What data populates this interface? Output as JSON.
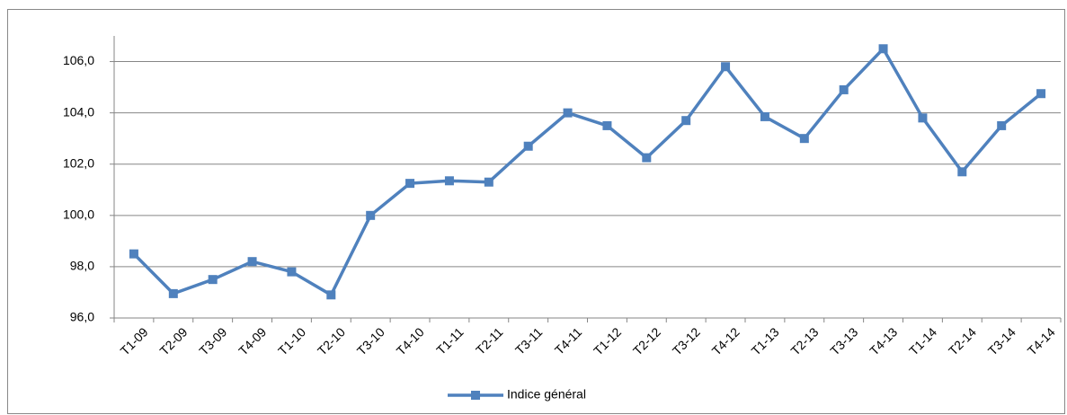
{
  "chart_data": {
    "type": "line",
    "categories": [
      "T1-09",
      "T2-09",
      "T3-09",
      "T4-09",
      "T1-10",
      "T2-10",
      "T3-10",
      "T4-10",
      "T1-11",
      "T2-11",
      "T3-11",
      "T4-11",
      "T1-12",
      "T2-12",
      "T3-12",
      "T4-12",
      "T1-13",
      "T2-13",
      "T3-13",
      "T4-13",
      "T1-14",
      "T2-14",
      "T3-14",
      "T4-14"
    ],
    "series": [
      {
        "name": "Indice général",
        "color": "#4f81bd",
        "values": [
          98.5,
          96.95,
          97.5,
          98.2,
          97.8,
          96.9,
          100.0,
          101.25,
          101.35,
          101.3,
          102.7,
          104.0,
          103.5,
          102.25,
          103.7,
          105.8,
          103.85,
          103.0,
          104.9,
          106.5,
          103.8,
          101.7,
          103.5,
          104.75
        ]
      }
    ],
    "ylim": [
      96,
      107
    ],
    "yticks": [
      {
        "value": 96,
        "label": "96,0"
      },
      {
        "value": 98,
        "label": "98,0"
      },
      {
        "value": 100,
        "label": "100,0"
      },
      {
        "value": 102,
        "label": "102,0"
      },
      {
        "value": 104,
        "label": "104,0"
      },
      {
        "value": 106,
        "label": "106,0"
      }
    ],
    "grid": true,
    "legend": "bottom"
  }
}
